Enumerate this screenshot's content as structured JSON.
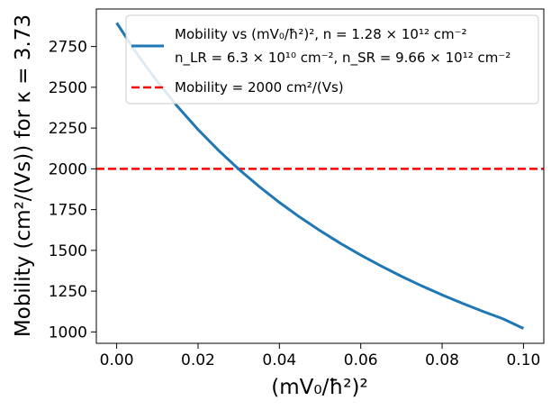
{
  "chart_data": {
    "type": "line",
    "xlabel": "(mV₀/ħ²)²",
    "ylabel": "Mobility (cm²/(Vs)) for  κ = 3.73",
    "xlim": [
      -0.005,
      0.105
    ],
    "ylim": [
      930,
      2980
    ],
    "x_ticks": [
      0.0,
      0.02,
      0.04,
      0.06,
      0.08,
      0.1
    ],
    "x_tick_labels": [
      "0.00",
      "0.02",
      "0.04",
      "0.06",
      "0.08",
      "0.10"
    ],
    "y_ticks": [
      1000,
      1250,
      1500,
      1750,
      2000,
      2250,
      2500,
      2750
    ],
    "y_tick_labels": [
      "1000",
      "1250",
      "1500",
      "1750",
      "2000",
      "2250",
      "2500",
      "2750"
    ],
    "series": [
      {
        "name": "Mobility vs (mV₀/ħ²)², n = 1.28 × 10¹² cm⁻²",
        "name_line2": "n_LR = 6.3 × 10¹⁰ cm⁻²,  n_SR = 9.66 × 10¹² cm⁻²",
        "color": "#1f77b4",
        "x": [
          0.0,
          0.005,
          0.01,
          0.015,
          0.02,
          0.025,
          0.03,
          0.035,
          0.04,
          0.045,
          0.05,
          0.055,
          0.06,
          0.065,
          0.07,
          0.075,
          0.08,
          0.085,
          0.09,
          0.095,
          0.1
        ],
        "y": [
          2895,
          2705,
          2535,
          2381,
          2241,
          2114,
          1998,
          1892,
          1794,
          1704,
          1621,
          1543,
          1471,
          1404,
          1341,
          1282,
          1227,
          1175,
          1126,
          1080,
          1021
        ]
      }
    ],
    "reference_line": {
      "label": "Mobility = 2000 cm²/(Vs)",
      "y": 2000,
      "color": "#ff0000"
    },
    "legend_position": "top-right",
    "grid": false
  }
}
